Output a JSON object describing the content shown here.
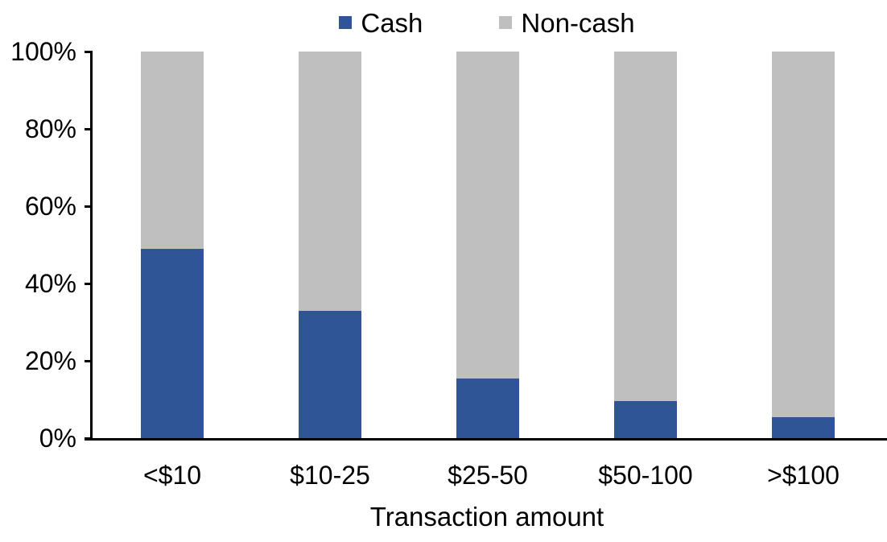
{
  "chart_data": {
    "type": "bar",
    "stacked": true,
    "stack_unit": "percent",
    "title": "",
    "xlabel": "Transaction amount",
    "ylabel": "",
    "categories": [
      "<$10",
      "$10-25",
      "$25-50",
      "$50-100",
      ">$100"
    ],
    "series": [
      {
        "name": "Cash",
        "color": "#2F5597",
        "values": [
          49,
          33,
          15.5,
          9.5,
          5.5
        ]
      },
      {
        "name": "Non-cash",
        "color": "#BFBFBF",
        "values": [
          51,
          67,
          84.5,
          90.5,
          94.5
        ]
      }
    ],
    "ylim": [
      0,
      100
    ],
    "ytick_step": 20,
    "ytick_labels": [
      "0%",
      "20%",
      "40%",
      "60%",
      "80%",
      "100%"
    ],
    "legend_position": "top",
    "grid": false
  },
  "colors": {
    "axis": "#000000",
    "background": "#FFFFFF",
    "cash": "#2F5597",
    "noncash": "#BFBFBF"
  }
}
